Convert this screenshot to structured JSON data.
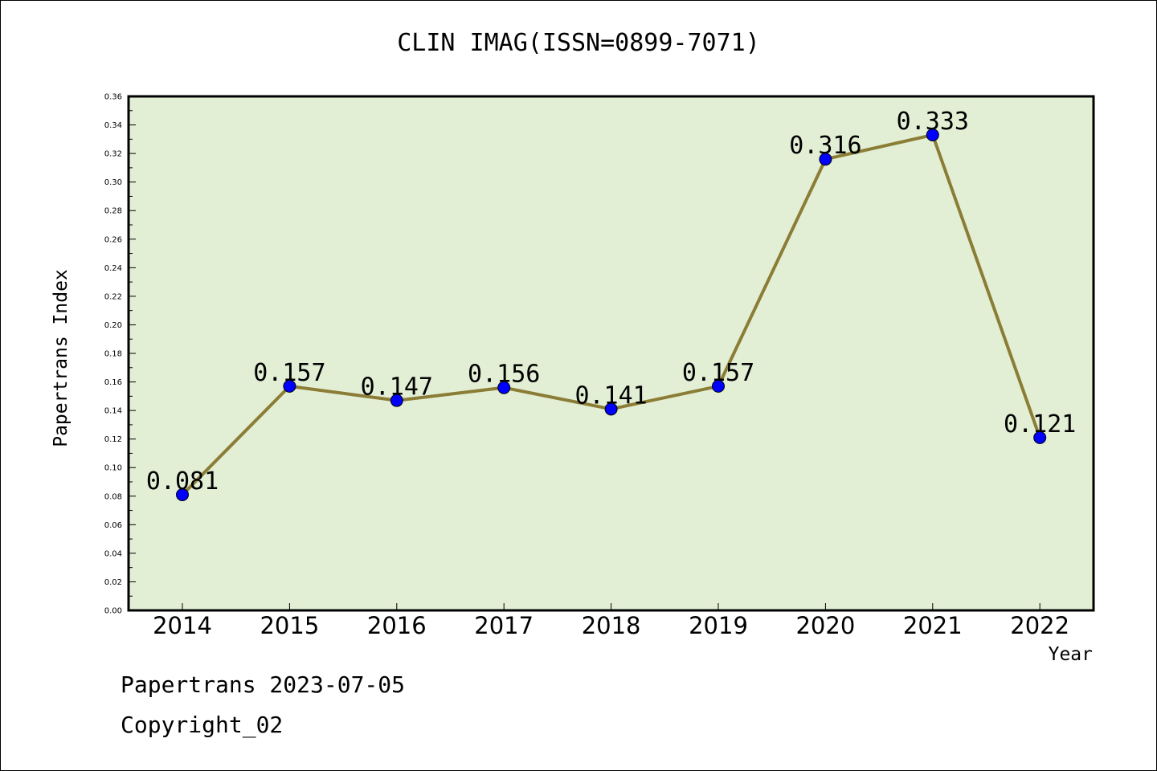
{
  "chart_data": {
    "type": "line",
    "title": "CLIN IMAG(ISSN=0899-7071)",
    "xlabel": "Year",
    "ylabel": "Papertrans Index",
    "categories": [
      "2014",
      "2015",
      "2016",
      "2017",
      "2018",
      "2019",
      "2020",
      "2021",
      "2022"
    ],
    "series": [
      {
        "values": [
          0.081,
          0.157,
          0.147,
          0.156,
          0.141,
          0.157,
          0.316,
          0.333,
          0.121
        ]
      }
    ],
    "data_labels": [
      "0.081",
      "0.157",
      "0.147",
      "0.156",
      "0.141",
      "0.157",
      "0.316",
      "0.333",
      "0.121"
    ],
    "ylim": [
      0,
      0.36
    ],
    "ytick_labels": [
      "0.00",
      "0.02",
      "0.04",
      "0.06",
      "0.08",
      "0.10",
      "0.12",
      "0.14",
      "0.16",
      "0.18",
      "0.20",
      "0.22",
      "0.24",
      "0.26",
      "0.28",
      "0.30",
      "0.32",
      "0.34",
      "0.36"
    ],
    "grid": false,
    "colors": {
      "plot_background": "#e2efd5",
      "line": "#8b7d35",
      "marker": "#0000ff"
    }
  },
  "footer": {
    "line1": "Papertrans 2023-07-05",
    "line2": "Copyright_02"
  }
}
